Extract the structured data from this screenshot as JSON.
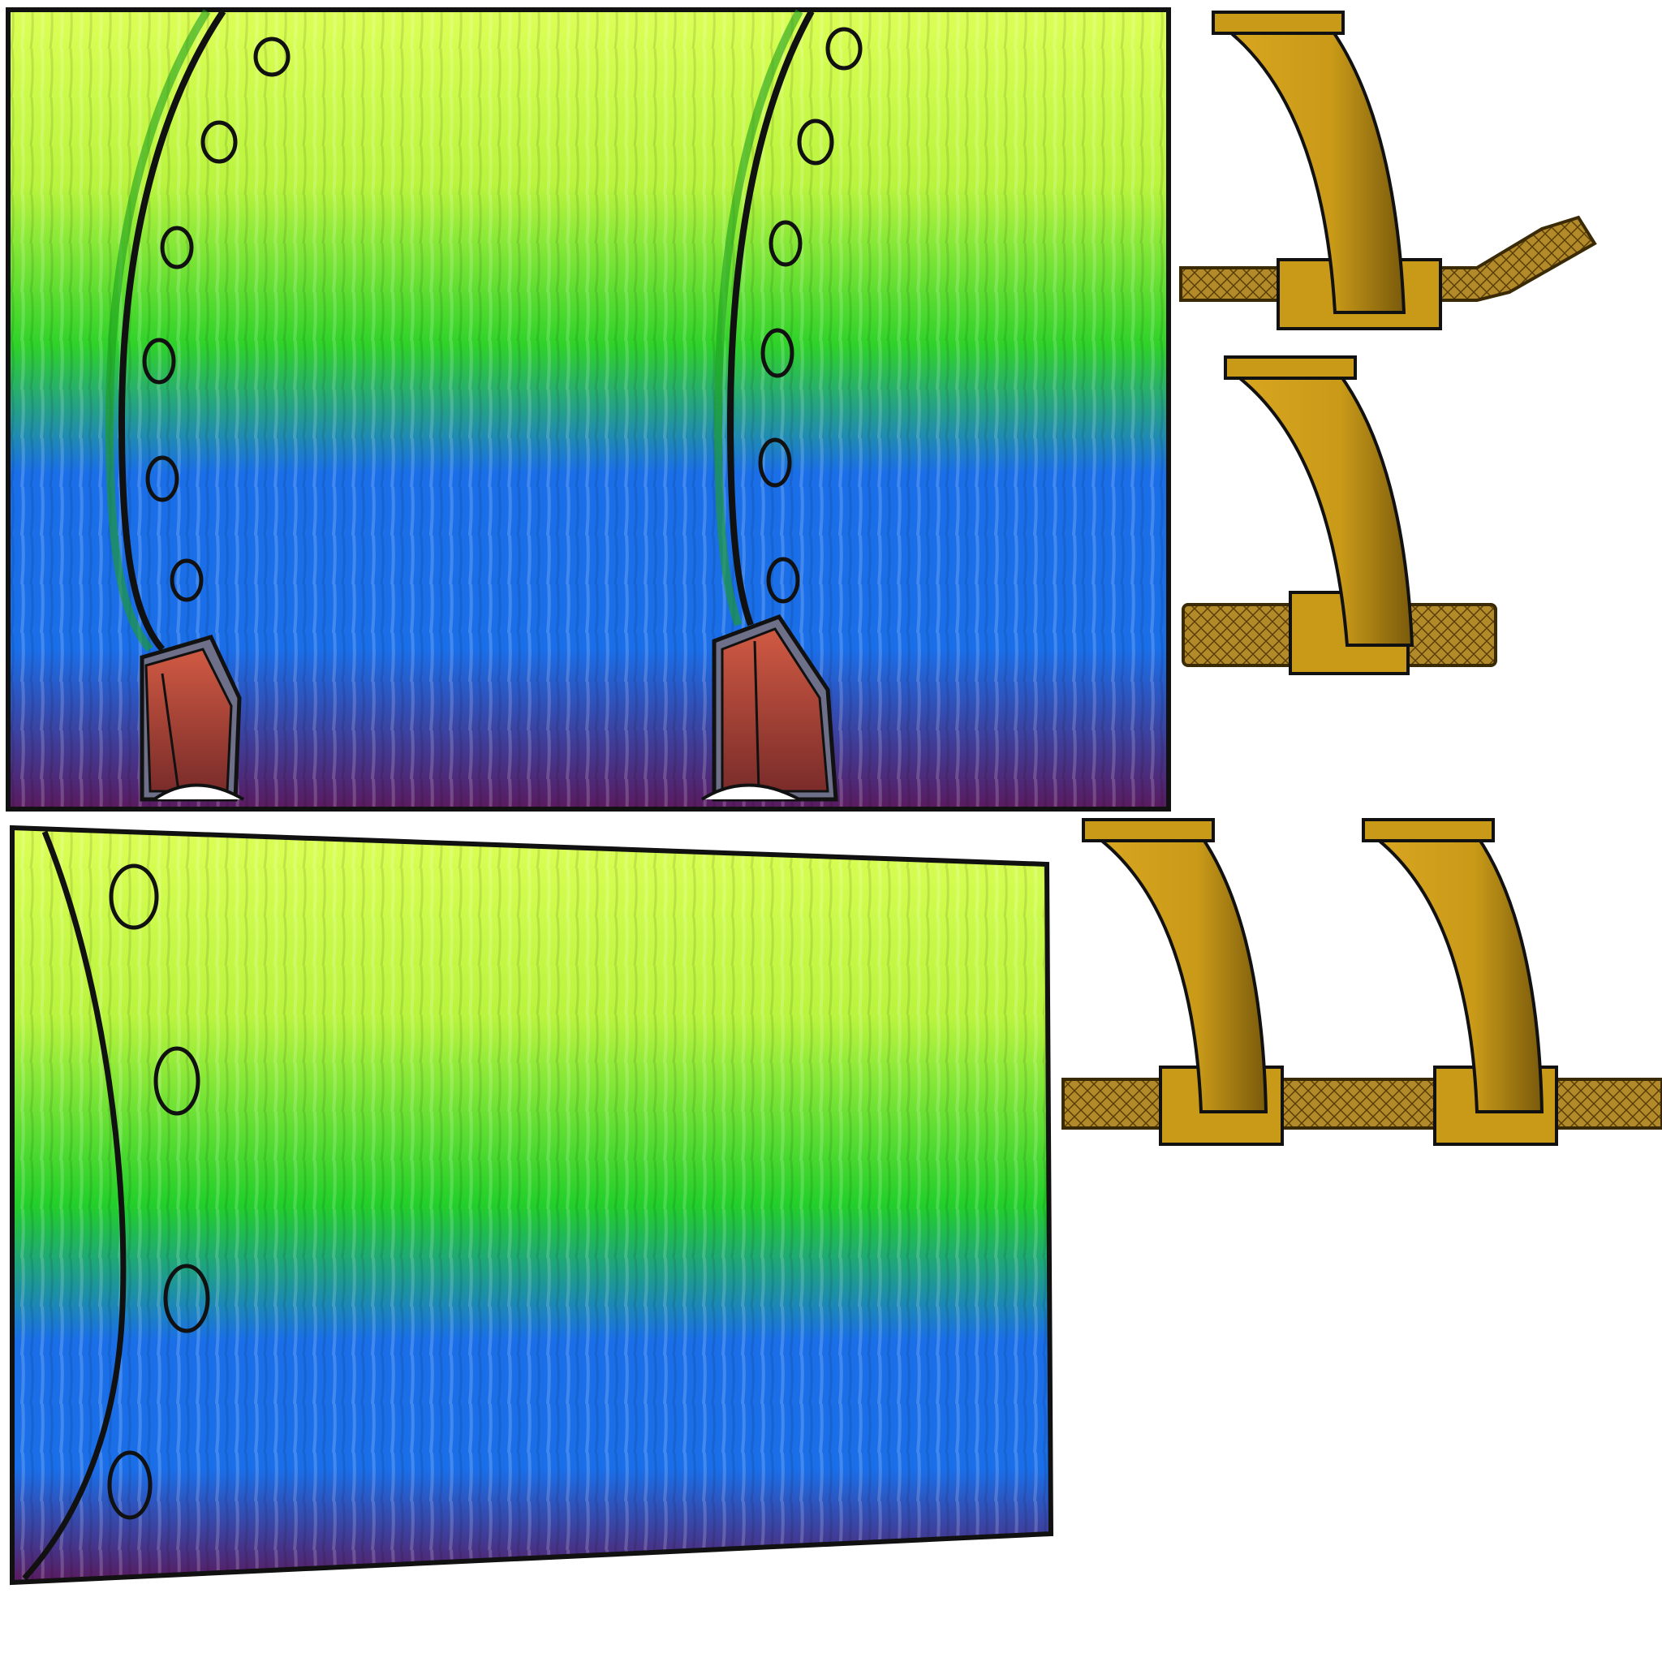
{
  "sprite_sheet": {
    "background": "#ffffff",
    "tiles": [
      {
        "name": "submarine-hull-segment-double",
        "kind": "hull",
        "seams": 2,
        "portholes_per_seam": 6,
        "has_propeller_fins": true
      },
      {
        "name": "submarine-hull-segment-single",
        "kind": "hull",
        "seams": 1,
        "portholes_per_seam": 4,
        "has_propeller_fins": false
      },
      {
        "name": "periscope-pipe-bent",
        "kind": "pipe",
        "variant": "bent-end"
      },
      {
        "name": "periscope-pipe-straight",
        "kind": "pipe",
        "variant": "straight"
      },
      {
        "name": "periscope-pipe-double",
        "kind": "pipe",
        "variant": "double"
      }
    ],
    "colors": {
      "lime": "#d8ff4a",
      "yellow_green": "#b6f53e",
      "green": "#1fcf2a",
      "blue": "#1a6ee8",
      "purple": "#5a1a5e",
      "outline": "#111111",
      "pipe_gold": "#c99a18",
      "pipe_dark": "#7a5a0c",
      "fin_red": "#b8473a",
      "fin_gray": "#6e6f88"
    }
  }
}
